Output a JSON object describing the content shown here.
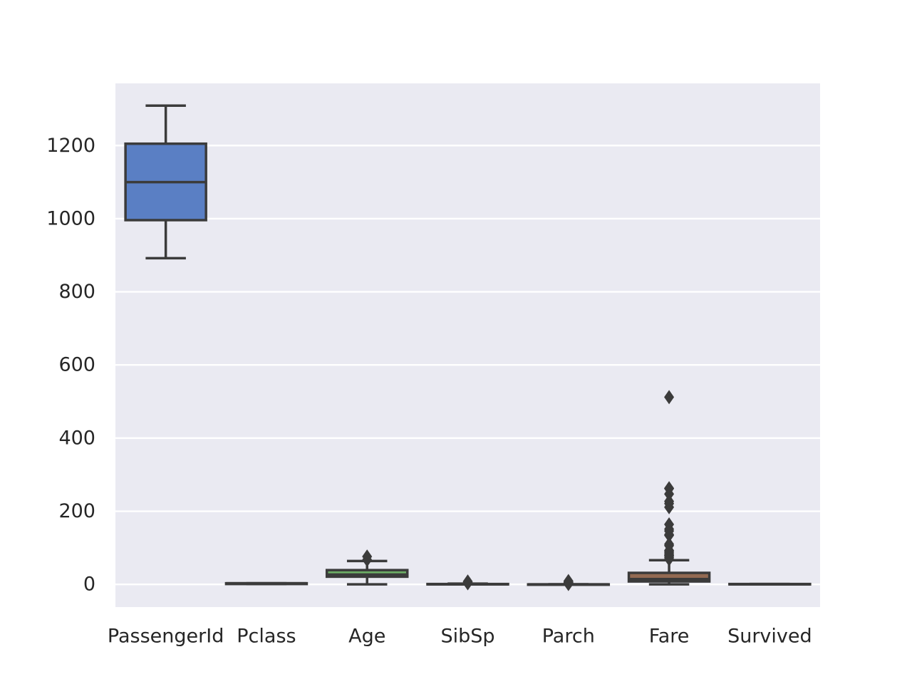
{
  "chart_data": {
    "type": "box",
    "categories": [
      "PassengerId",
      "Pclass",
      "Age",
      "SibSp",
      "Parch",
      "Fare",
      "Survived"
    ],
    "ylim": [
      -62,
      1370
    ],
    "yticks": [
      0,
      200,
      400,
      600,
      800,
      1000,
      1200
    ],
    "grid": true,
    "background_color": "#eaeaf2",
    "grid_color": "#ffffff",
    "line_color": "#3b3b3b",
    "boxes": [
      {
        "name": "PassengerId",
        "color": "#5a7fc4",
        "min": 892,
        "q1": 996,
        "median": 1100,
        "q3": 1205,
        "max": 1309,
        "fliers": []
      },
      {
        "name": "Pclass",
        "color": "#e08a55",
        "min": 1,
        "q1": 1,
        "median": 3,
        "q3": 3,
        "max": 3,
        "fliers": []
      },
      {
        "name": "Age",
        "color": "#6cad65",
        "min": 0.2,
        "q1": 21,
        "median": 27,
        "q3": 39,
        "max": 64,
        "fliers": [
          67,
          76
        ]
      },
      {
        "name": "SibSp",
        "color": "#c65b5b",
        "min": 0,
        "q1": 0,
        "median": 0,
        "q3": 1,
        "max": 2,
        "fliers": [
          3,
          4,
          5,
          8
        ]
      },
      {
        "name": "Parch",
        "color": "#8c78b4",
        "min": 0,
        "q1": 0,
        "median": 0,
        "q3": 0,
        "max": 0,
        "fliers": [
          1,
          2,
          3,
          4,
          5,
          6,
          9
        ]
      },
      {
        "name": "Fare",
        "color": "#936a52",
        "min": 0,
        "q1": 8,
        "median": 14.5,
        "q3": 31.5,
        "max": 66,
        "fliers": [
          69,
          73,
          77,
          79,
          82,
          86,
          90,
          93,
          106,
          110,
          134,
          136,
          146,
          151,
          164,
          211,
          221,
          227,
          247,
          262,
          263,
          512
        ]
      },
      {
        "name": "Survived",
        "color": "#d284bf",
        "min": 0,
        "q1": 0,
        "median": 0,
        "q3": 1,
        "max": 1,
        "fliers": []
      }
    ]
  }
}
